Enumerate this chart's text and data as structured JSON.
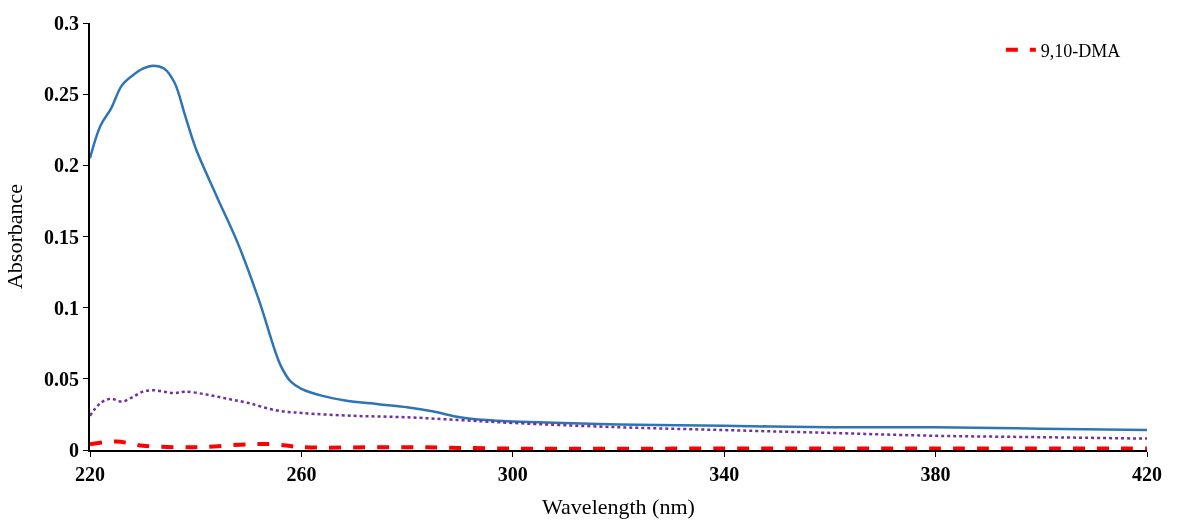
{
  "chart_data": {
    "type": "line",
    "xlabel": "Wavelength (nm)",
    "ylabel": "Absorbance",
    "xlim": [
      220,
      420
    ],
    "xticks": [
      220,
      260,
      300,
      340,
      380,
      420
    ],
    "ylim": [
      0,
      0.3
    ],
    "yticks": [
      0,
      0.05,
      0.1,
      0.15,
      0.2,
      0.25,
      0.3
    ],
    "legend": "top right",
    "marker": "none",
    "series": [
      {
        "name": "9,10-DMA",
        "color": "#ff0000",
        "line_style": "dashed",
        "x": [
          220,
          225,
          230,
          240,
          250,
          255,
          260,
          280,
          300,
          340,
          380,
          420
        ],
        "values": [
          0.004,
          0.006,
          0.003,
          0.002,
          0.004,
          0.004,
          0.002,
          0.002,
          0.001,
          0.001,
          0.001,
          0.001
        ]
      },
      {
        "color": "#2e75b6",
        "line_style": "solid",
        "x": [
          220,
          222,
          224,
          226,
          228,
          230,
          232,
          234,
          236,
          238,
          240,
          244,
          248,
          252,
          256,
          258,
          260,
          264,
          268,
          275,
          280,
          285,
          290,
          295,
          300,
          320,
          340,
          360,
          380,
          400,
          420
        ],
        "values": [
          0.205,
          0.228,
          0.24,
          0.256,
          0.263,
          0.268,
          0.27,
          0.268,
          0.258,
          0.235,
          0.212,
          0.178,
          0.145,
          0.105,
          0.06,
          0.048,
          0.043,
          0.038,
          0.035,
          0.032,
          0.03,
          0.027,
          0.023,
          0.021,
          0.02,
          0.018,
          0.017,
          0.016,
          0.016,
          0.015,
          0.014
        ]
      },
      {
        "color": "#7030a0",
        "line_style": "dotted",
        "x": [
          220,
          222,
          224,
          226,
          228,
          230,
          232,
          234,
          236,
          238,
          242,
          246,
          250,
          255,
          260,
          270,
          280,
          290,
          300,
          320,
          340,
          360,
          380,
          400,
          420
        ],
        "values": [
          0.024,
          0.033,
          0.036,
          0.034,
          0.037,
          0.041,
          0.042,
          0.041,
          0.04,
          0.041,
          0.039,
          0.036,
          0.033,
          0.028,
          0.026,
          0.024,
          0.023,
          0.021,
          0.019,
          0.016,
          0.014,
          0.012,
          0.01,
          0.009,
          0.008
        ]
      }
    ]
  }
}
